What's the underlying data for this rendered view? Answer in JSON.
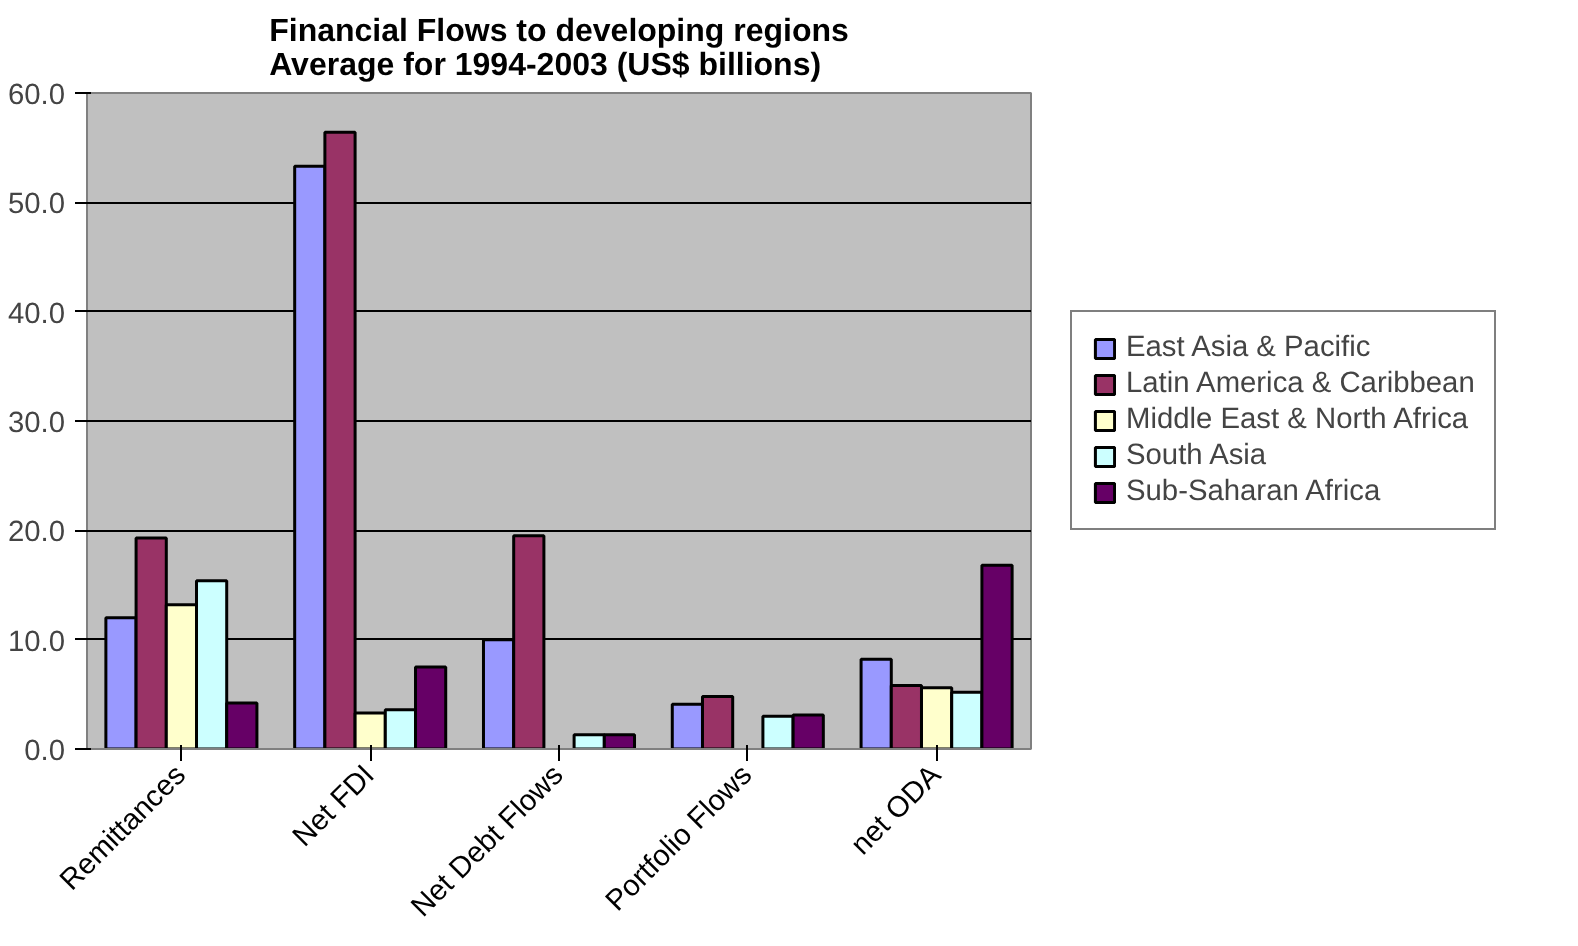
{
  "chart_data": {
    "type": "bar",
    "title": "Financial Flows to developing regions\nAverage for 1994-2003 (US$ billions)",
    "categories": [
      "Remittances",
      "Net FDI",
      "Net Debt Flows",
      "Portfolio Flows",
      "net ODA"
    ],
    "series": [
      {
        "name": "East Asia & Pacific",
        "color": "#9999ff",
        "values": [
          12.0,
          53.3,
          10.0,
          4.1,
          8.2
        ]
      },
      {
        "name": "Latin America & Caribbean",
        "color": "#993366",
        "values": [
          19.3,
          56.4,
          19.5,
          4.8,
          5.8
        ]
      },
      {
        "name": "Middle East & North Africa",
        "color": "#ffffcc",
        "values": [
          13.2,
          3.3,
          null,
          null,
          5.6
        ]
      },
      {
        "name": "South Asia",
        "color": "#ccffff",
        "values": [
          15.4,
          3.6,
          1.3,
          3.0,
          5.2
        ]
      },
      {
        "name": "Sub-Saharan Africa",
        "color": "#660066",
        "values": [
          4.2,
          7.5,
          1.3,
          3.1,
          16.8
        ]
      }
    ],
    "ylim": [
      0,
      60
    ],
    "yticks": [
      {
        "value": 0,
        "label": "0.0"
      },
      {
        "value": 10,
        "label": "10.0"
      },
      {
        "value": 20,
        "label": "20.0"
      },
      {
        "value": 30,
        "label": "30.0"
      },
      {
        "value": 40,
        "label": "40.0"
      },
      {
        "value": 50,
        "label": "50.0"
      },
      {
        "value": 60,
        "label": "60.0"
      }
    ],
    "grid": "y",
    "legend": "right"
  }
}
